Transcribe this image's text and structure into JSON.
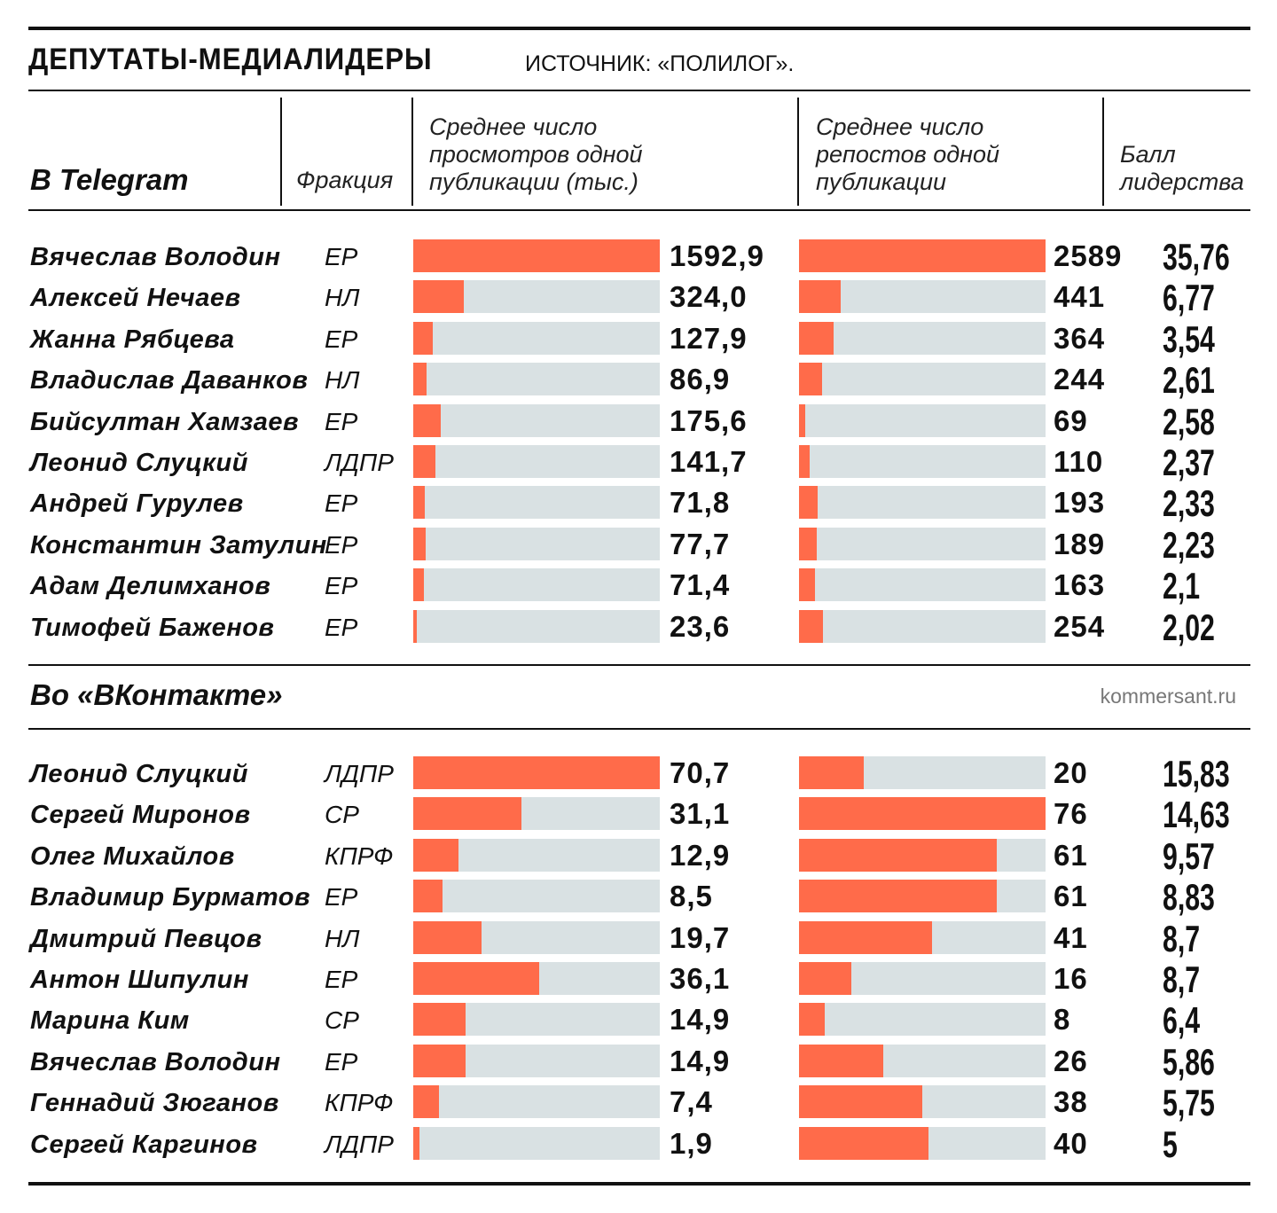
{
  "header": {
    "title": "ДЕПУТАТЫ-МЕДИАЛИДЕРЫ",
    "source": "ИСТОЧНИК: «ПОЛИЛОГ»."
  },
  "columns": {
    "faction": "Фракция",
    "views": [
      "Среднее число",
      "просмотров одной",
      "публикации (тыс.)"
    ],
    "reposts": [
      "Среднее число",
      "репостов одной",
      "публикации"
    ],
    "score": [
      "Балл",
      "лидерства"
    ]
  },
  "site": "kommersant.ru",
  "colors": {
    "accent": "#ff6b4a",
    "track": "#d9e1e3",
    "text": "#111111"
  },
  "chart_data": [
    {
      "type": "bar",
      "title": "В Telegram",
      "categories": [
        "Вячеслав Володин",
        "Алексей Нечаев",
        "Жанна Рябцева",
        "Владислав  Даванков",
        "Бийсултан Хамзаев",
        "Леонид Слуцкий",
        "Андрей Гурулев",
        "Константин Затулин",
        "Адам Делимханов",
        "Тимофей Баженов"
      ],
      "factions": [
        "ЕР",
        "НЛ",
        "ЕР",
        "НЛ",
        "ЕР",
        "ЛДПР",
        "ЕР",
        "ЕР",
        "ЕР",
        "ЕР"
      ],
      "series": [
        {
          "name": "Среднее число просмотров одной публикации (тыс.)",
          "values": [
            1592.9,
            324.0,
            127.9,
            86.9,
            175.6,
            141.7,
            71.8,
            77.7,
            71.4,
            23.6
          ],
          "labels": [
            "1592,9",
            "324,0",
            "127,9",
            "86,9",
            "175,6",
            "141,7",
            "71,8",
            "77,7",
            "71,4",
            "23,6"
          ]
        },
        {
          "name": "Среднее число репостов одной публикации",
          "values": [
            2589,
            441,
            364,
            244,
            69,
            110,
            193,
            189,
            163,
            254
          ],
          "labels": [
            "2589",
            "441",
            "364",
            "244",
            "69",
            "110",
            "193",
            "189",
            "163",
            "254"
          ]
        },
        {
          "name": "Балл лидерства",
          "values": [
            35.76,
            6.77,
            3.54,
            2.61,
            2.58,
            2.37,
            2.33,
            2.23,
            2.1,
            2.02
          ],
          "labels": [
            "35,76",
            "6,77",
            "3,54",
            "2,61",
            "2,58",
            "2,37",
            "2,33",
            "2,23",
            "2,1",
            "2,02"
          ]
        }
      ]
    },
    {
      "type": "bar",
      "title": "Во «ВКонтакте»",
      "categories": [
        "Леонид Слуцкий",
        "Сергей Миронов",
        "Олег Михайлов",
        "Владимир Бурматов",
        "Дмитрий Певцов",
        "Антон Шипулин",
        "Марина Ким",
        "Вячеслав Володин",
        "Геннадий Зюганов",
        "Сергей Каргинов"
      ],
      "factions": [
        "ЛДПР",
        "СР",
        "КПРФ",
        "ЕР",
        "НЛ",
        "ЕР",
        "СР",
        "ЕР",
        "КПРФ",
        "ЛДПР"
      ],
      "series": [
        {
          "name": "Среднее число просмотров одной публикации (тыс.)",
          "values": [
            70.7,
            31.1,
            12.9,
            8.5,
            19.7,
            36.1,
            14.9,
            14.9,
            7.4,
            1.9
          ],
          "labels": [
            "70,7",
            "31,1",
            "12,9",
            "8,5",
            "19,7",
            "36,1",
            "14,9",
            "14,9",
            "7,4",
            "1,9"
          ]
        },
        {
          "name": "Среднее число репостов одной публикации",
          "values": [
            20,
            76,
            61,
            61,
            41,
            16,
            8,
            26,
            38,
            40
          ],
          "labels": [
            "20",
            "76",
            "61",
            "61",
            "41",
            "16",
            "8",
            "26",
            "38",
            "40"
          ]
        },
        {
          "name": "Балл лидерства",
          "values": [
            15.83,
            14.63,
            9.57,
            8.83,
            8.7,
            8.7,
            6.4,
            5.86,
            5.75,
            5
          ],
          "labels": [
            "15,83",
            "14,63",
            "9,57",
            "8,83",
            "8,7",
            "8,7",
            "6,4",
            "5,86",
            "5,75",
            "5"
          ]
        }
      ]
    }
  ]
}
